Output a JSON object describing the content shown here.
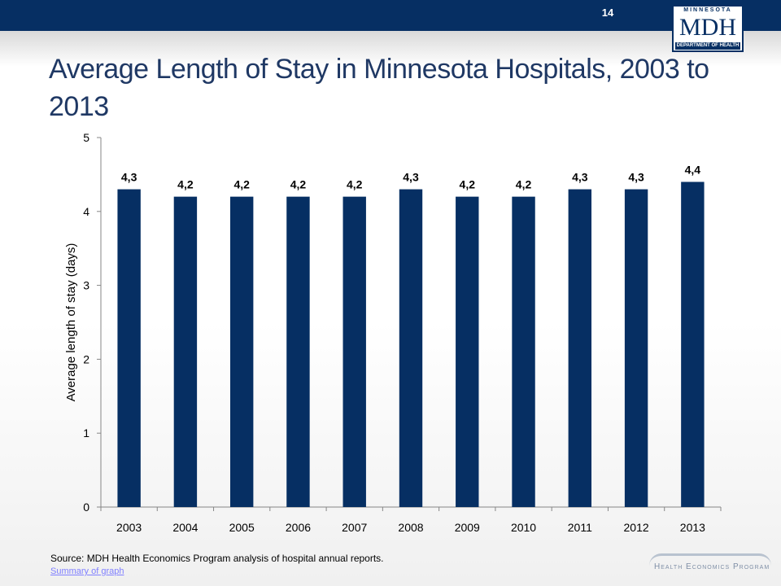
{
  "header": {
    "slide_number": "14",
    "logo": {
      "top": "MINNESOTA",
      "main": "MDH",
      "bottom": "DEPARTMENT OF HEALTH"
    }
  },
  "title": "Average Length of Stay in Minnesota Hospitals, 2003 to 2013",
  "chart_data": {
    "type": "bar",
    "categories": [
      "2003",
      "2004",
      "2005",
      "2006",
      "2007",
      "2008",
      "2009",
      "2010",
      "2011",
      "2012",
      "2013"
    ],
    "values": [
      4.3,
      4.2,
      4.2,
      4.2,
      4.2,
      4.3,
      4.2,
      4.2,
      4.3,
      4.3,
      4.4
    ],
    "data_labels": [
      "4,3",
      "4,2",
      "4,2",
      "4,2",
      "4,2",
      "4,3",
      "4,2",
      "4,2",
      "4,3",
      "4,3",
      "4,4"
    ],
    "ylabel": "Average length of stay (days)",
    "ylim": [
      0,
      5
    ],
    "yticks": [
      "0",
      "1",
      "2",
      "3",
      "4",
      "5"
    ],
    "grid": false,
    "bar_color": "#062f63"
  },
  "footer": {
    "source": "Source: MDH Health Economics Program analysis of hospital annual reports.",
    "summary_link": "Summary of graph",
    "program_logo": "Health Economics Program"
  },
  "colors": {
    "header": "#062f63",
    "title": "#1f3864"
  }
}
